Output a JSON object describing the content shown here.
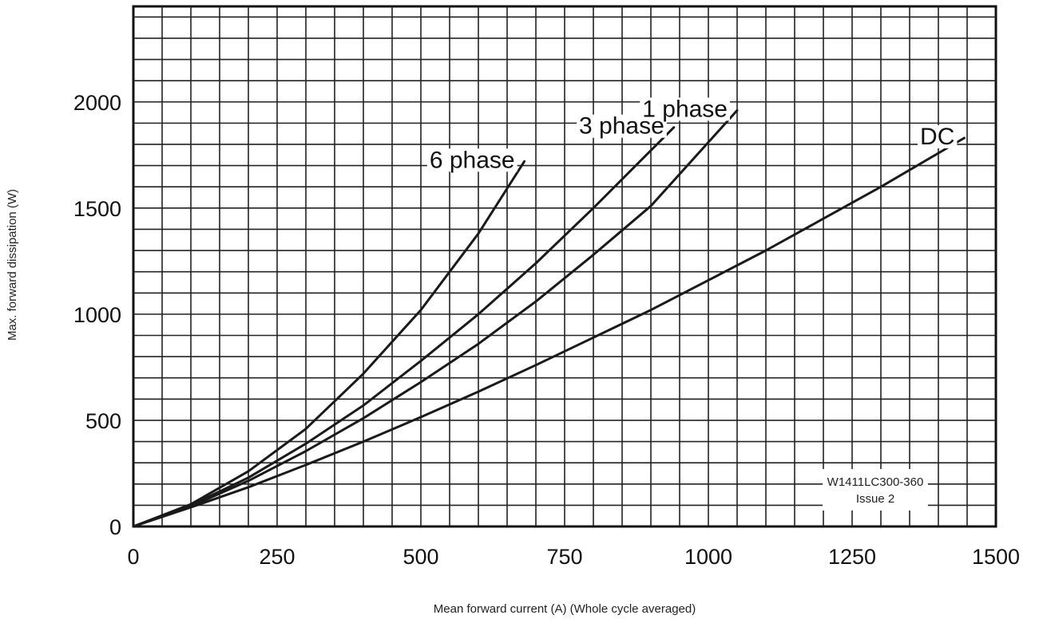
{
  "chart_data": {
    "type": "line",
    "xlabel": "Mean forward current (A) (Whole cycle averaged)",
    "ylabel": "Max. forward dissipation (W)",
    "xlim": [
      0,
      1500
    ],
    "ylim": [
      0,
      2450
    ],
    "xticks": [
      0,
      250,
      500,
      750,
      1000,
      1250,
      1500
    ],
    "yticks": [
      0,
      500,
      1000,
      1500,
      2000
    ],
    "grid": true,
    "series": [
      {
        "name": "6 phase",
        "x": [
          0,
          100,
          200,
          300,
          400,
          500,
          600,
          680
        ],
        "y": [
          0,
          105,
          260,
          460,
          720,
          1020,
          1380,
          1720
        ]
      },
      {
        "name": "3 phase",
        "x": [
          0,
          100,
          200,
          300,
          400,
          500,
          600,
          700,
          800,
          940
        ],
        "y": [
          0,
          100,
          230,
          390,
          570,
          780,
          1000,
          1240,
          1500,
          1880
        ]
      },
      {
        "name": "1 phase",
        "x": [
          0,
          100,
          200,
          300,
          400,
          500,
          600,
          700,
          800,
          900,
          1050
        ],
        "y": [
          0,
          95,
          215,
          355,
          510,
          680,
          860,
          1060,
          1280,
          1510,
          1960
        ]
      },
      {
        "name": "DC",
        "x": [
          0,
          100,
          200,
          300,
          400,
          500,
          600,
          700,
          800,
          900,
          1000,
          1100,
          1200,
          1300,
          1445
        ],
        "y": [
          0,
          90,
          185,
          290,
          400,
          515,
          635,
          760,
          890,
          1020,
          1160,
          1300,
          1450,
          1600,
          1830
        ]
      }
    ],
    "annotation": {
      "line1": "W1411LC300-360",
      "line2": "Issue 2"
    }
  }
}
